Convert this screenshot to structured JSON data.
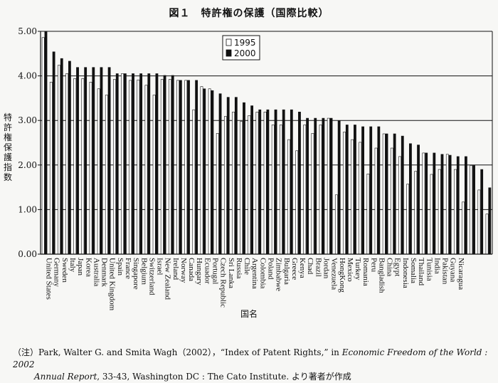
{
  "figure": {
    "title": "図１　特許権の保護（国際比較）",
    "xlabel": "国名",
    "ylabel": "特許権保護指数",
    "note_prefix": "（注）",
    "note_line1_plain": "Park, Walter G. and Smita Wagh（2002），“Index of Patent Rights,” in ",
    "note_line1_italic": "Economic Freedom of the World : 2002",
    "note_line2_italic": "Annual Report",
    "note_line2_plain": ", 33-43, Washington DC : The  Cato Institute. より著者が作成"
  },
  "chart_data": {
    "type": "bar",
    "ylim": [
      0,
      5
    ],
    "yticks": [
      "0.00",
      "1.00",
      "2.00",
      "3.00",
      "4.00",
      "5.00"
    ],
    "grid": true,
    "legend_position": "top-center",
    "series": [
      {
        "name": "1995",
        "color": "#ffffff",
        "values": [
          4.86,
          3.86,
          4.24,
          4.05,
          3.94,
          3.94,
          3.86,
          3.71,
          3.57,
          3.92,
          4.05,
          3.9,
          3.91,
          3.79,
          3.57,
          3.92,
          3.92,
          3.9,
          3.9,
          3.24,
          3.76,
          3.71,
          2.71,
          3.09,
          3.19,
          2.98,
          3.11,
          3.19,
          3.19,
          2.9,
          2.9,
          2.57,
          2.32,
          2.9,
          2.71,
          2.9,
          3.05,
          1.33,
          2.74,
          2.57,
          2.51,
          1.8,
          2.38,
          2.7,
          2.38,
          2.19,
          1.57,
          1.86,
          2.27,
          1.79,
          1.9,
          2.24,
          1.9,
          1.17,
          1.99,
          1.44,
          0.9
        ]
      },
      {
        "name": "2000",
        "color": "#111111",
        "values": [
          5.0,
          4.54,
          4.39,
          4.33,
          4.19,
          4.19,
          4.19,
          4.19,
          4.19,
          4.05,
          4.05,
          4.05,
          4.05,
          4.05,
          4.05,
          4.01,
          4.01,
          3.9,
          3.9,
          3.9,
          3.71,
          3.67,
          3.6,
          3.52,
          3.52,
          3.4,
          3.33,
          3.24,
          3.24,
          3.24,
          3.24,
          3.24,
          3.19,
          3.05,
          3.05,
          3.05,
          3.05,
          2.99,
          2.9,
          2.9,
          2.86,
          2.86,
          2.86,
          2.7,
          2.7,
          2.65,
          2.48,
          2.45,
          2.27,
          2.27,
          2.24,
          2.22,
          2.19,
          2.19,
          1.99,
          1.9,
          1.49
        ]
      }
    ],
    "categories": [
      "United States",
      "Germany",
      "Sweden",
      "Italy",
      "Japan",
      "Korea",
      "Australia",
      "Denmark",
      "United Kingdom",
      "Spain",
      "France",
      "Singapore",
      "Belgium",
      "Switzerland",
      "Israel",
      "New Zealand",
      "Ireland",
      "Norway",
      "Canada",
      "Hungary",
      "Ecuador",
      "Portugal",
      "Czech Republic",
      "Sri Lanka",
      "Russia",
      "Chile",
      "Argentina",
      "Colombia",
      "Poland",
      "Zimbabwe",
      "Bulgaria",
      "Greece",
      "Kenya",
      "Chad",
      "Brazil",
      "Jordan",
      "Venezuela",
      "HongKong",
      "Mexico",
      "Turkey",
      "Romania",
      "Peru",
      "Bangladish",
      "China",
      "Egypt",
      "Indonesia",
      "Somalia",
      "Thailand",
      "Tunisia",
      "India",
      "Pakistan",
      "Guyana",
      "Nicaragua",
      "",
      "",
      "",
      ""
    ]
  }
}
